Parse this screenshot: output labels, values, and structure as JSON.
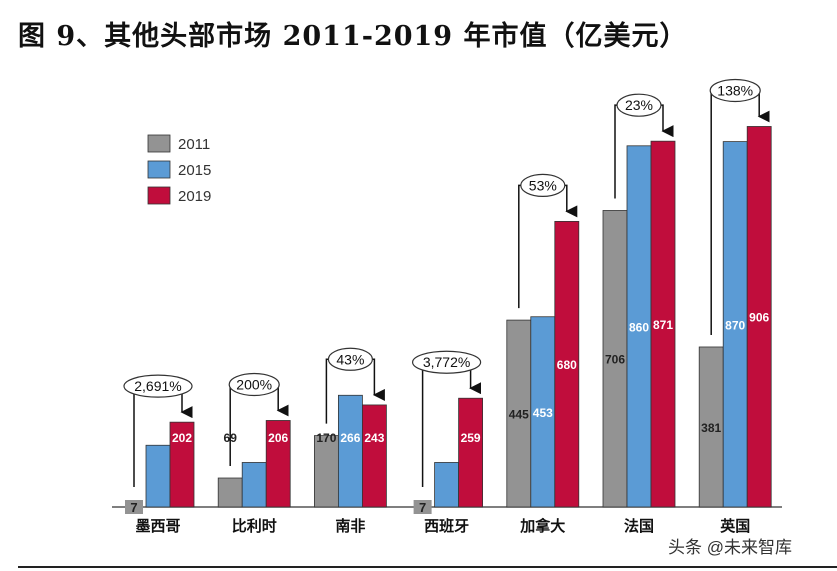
{
  "chart_data": {
    "type": "bar",
    "title": "图 9、其他头部市场 2011-2019 年市值（亿美元）",
    "categories": [
      "墨西哥",
      "比利时",
      "南非",
      "西班牙",
      "加拿大",
      "法国",
      "英国"
    ],
    "series": [
      {
        "name": "2011",
        "color": "#939393",
        "values": [
          7,
          69,
          170,
          7,
          445,
          706,
          381
        ]
      },
      {
        "name": "2015",
        "color": "#5b9bd5",
        "values": [
          147,
          106,
          266,
          106,
          453,
          860,
          870
        ]
      },
      {
        "name": "2019",
        "color": "#c00d3c",
        "values": [
          202,
          206,
          243,
          259,
          680,
          871,
          906
        ]
      }
    ],
    "growth_labels": [
      "2,691%",
      "200%",
      "43%",
      "3,772%",
      "53%",
      "23%",
      "138%"
    ],
    "legend_position": "top-left",
    "grid": false
  },
  "watermark": "头条 @未来智库"
}
